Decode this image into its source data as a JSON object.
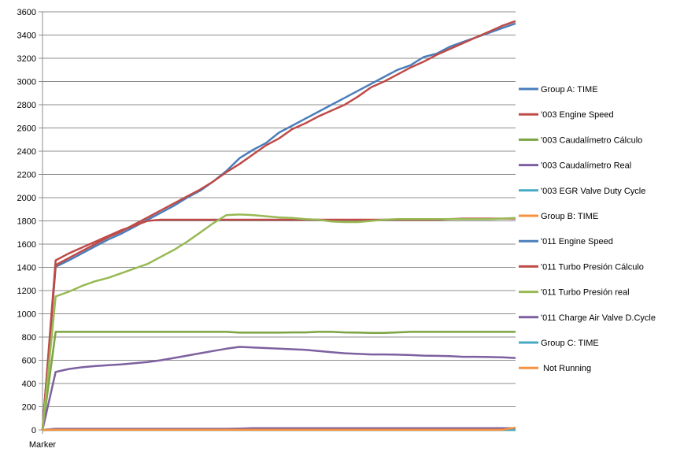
{
  "chart_data": {
    "type": "line",
    "title": "",
    "xlabel": "",
    "ylabel": "",
    "x_tick_labels": [
      "Marker"
    ],
    "ylim": [
      0,
      3600
    ],
    "yticks": [
      0,
      200,
      400,
      600,
      800,
      1000,
      1200,
      1400,
      1600,
      1800,
      2000,
      2200,
      2400,
      2600,
      2800,
      3000,
      3200,
      3400,
      3600
    ],
    "grid": true,
    "legend_position": "right",
    "series": [
      {
        "name": "Group A: TIME",
        "color": "#4a7ebb",
        "values": [
          0,
          1405,
          1460,
          1520,
          1580,
          1640,
          1690,
          1750,
          1810,
          1870,
          1930,
          2000,
          2060,
          2140,
          2230,
          2340,
          2410,
          2470,
          2560,
          2620,
          2680,
          2740,
          2800,
          2860,
          2920,
          2980,
          3040,
          3100,
          3140,
          3210,
          3240,
          3300,
          3340,
          3380,
          3420,
          3460,
          3500
        ]
      },
      {
        "name": "'003 Engine Speed",
        "color": "#be4b48",
        "values": [
          0,
          1420,
          1480,
          1540,
          1600,
          1660,
          1710,
          1770,
          1830,
          1890,
          1950,
          2010,
          2070,
          2140,
          2220,
          2290,
          2370,
          2450,
          2510,
          2590,
          2640,
          2700,
          2750,
          2800,
          2870,
          2950,
          3000,
          3060,
          3120,
          3170,
          3230,
          3280,
          3330,
          3380,
          3430,
          3480,
          3520
        ]
      },
      {
        "name": "'003 Caudalímetro Cálculo",
        "color": "#7ba443",
        "values": [
          0,
          845,
          845,
          845,
          845,
          845,
          845,
          845,
          845,
          845,
          845,
          845,
          845,
          845,
          845,
          838,
          838,
          838,
          838,
          840,
          840,
          845,
          845,
          840,
          838,
          835,
          835,
          840,
          845,
          845,
          845,
          845,
          845,
          845,
          845,
          845,
          845
        ]
      },
      {
        "name": "'003 Caudalímetro Real",
        "color": "#7d60a0",
        "values": [
          0,
          500,
          525,
          540,
          550,
          558,
          565,
          575,
          585,
          600,
          620,
          640,
          660,
          680,
          700,
          715,
          710,
          705,
          700,
          695,
          690,
          680,
          670,
          660,
          655,
          650,
          650,
          648,
          645,
          640,
          638,
          635,
          630,
          630,
          628,
          625,
          620
        ]
      },
      {
        "name": "'003 EGR Valve Duty Cycle",
        "color": "#46aac5",
        "values": [
          0,
          4,
          4,
          4,
          4,
          4,
          4,
          4,
          4,
          4,
          4,
          4,
          4,
          4,
          4,
          4,
          4,
          4,
          4,
          4,
          4,
          4,
          4,
          4,
          4,
          4,
          4,
          4,
          4,
          4,
          4,
          4,
          4,
          4,
          4,
          4,
          4
        ]
      },
      {
        "name": "Group B: TIME",
        "color": "#f69240",
        "values": [
          0,
          0,
          0,
          0,
          0,
          0,
          0,
          0,
          0,
          0,
          0,
          0,
          0,
          0,
          0,
          0,
          0,
          0,
          0,
          0,
          0,
          0,
          0,
          0,
          0,
          0,
          0,
          0,
          0,
          0,
          0,
          0,
          0,
          0,
          0,
          0,
          0
        ]
      },
      {
        "name": "'011 Engine Speed",
        "color": "#4a7ebb",
        "values": [
          0,
          8,
          8,
          8,
          8,
          8,
          8,
          8,
          8,
          8,
          8,
          8,
          8,
          8,
          8,
          8,
          8,
          8,
          8,
          8,
          8,
          8,
          8,
          8,
          8,
          8,
          8,
          8,
          8,
          8,
          8,
          8,
          8,
          8,
          8,
          8,
          8
        ]
      },
      {
        "name": "'011 Turbo Presión Cálculo",
        "color": "#be4b48",
        "values": [
          0,
          1460,
          1520,
          1570,
          1620,
          1670,
          1720,
          1760,
          1800,
          1810,
          1810,
          1810,
          1810,
          1810,
          1810,
          1810,
          1810,
          1810,
          1810,
          1810,
          1810,
          1810,
          1810,
          1810,
          1810,
          1810,
          1810,
          1810,
          1810,
          1810,
          1810,
          1815,
          1820,
          1820,
          1820,
          1820,
          1820
        ]
      },
      {
        "name": "'011 Turbo Presión real",
        "color": "#98b954",
        "values": [
          0,
          1150,
          1190,
          1240,
          1280,
          1310,
          1350,
          1390,
          1430,
          1490,
          1550,
          1620,
          1700,
          1780,
          1850,
          1855,
          1850,
          1840,
          1830,
          1825,
          1815,
          1810,
          1795,
          1790,
          1790,
          1800,
          1810,
          1815,
          1815,
          1815,
          1815,
          1815,
          1815,
          1815,
          1815,
          1820,
          1825
        ]
      },
      {
        "name": "'011 Charge Air Valve D.Cycle",
        "color": "#7d60a0",
        "values": [
          0,
          10,
          10,
          10,
          10,
          10,
          10,
          10,
          10,
          10,
          10,
          10,
          10,
          10,
          10,
          12,
          15,
          15,
          15,
          15,
          15,
          15,
          15,
          15,
          15,
          15,
          15,
          15,
          15,
          15,
          15,
          15,
          15,
          15,
          15,
          15,
          15
        ]
      },
      {
        "name": "Group C: TIME",
        "color": "#46aac5",
        "values": [
          0,
          0,
          0,
          0,
          0,
          0,
          0,
          0,
          0,
          0,
          0,
          0,
          0,
          0,
          0,
          0,
          0,
          0,
          0,
          0,
          0,
          0,
          0,
          0,
          0,
          0,
          0,
          0,
          0,
          0,
          0,
          0,
          0,
          0,
          0,
          0,
          0
        ]
      },
      {
        "name": "Not Running",
        "color": "#f69240",
        "values": [
          0,
          2,
          2,
          2,
          2,
          2,
          2,
          2,
          2,
          2,
          2,
          2,
          2,
          2,
          2,
          2,
          2,
          2,
          2,
          2,
          2,
          2,
          2,
          2,
          2,
          2,
          2,
          2,
          2,
          2,
          2,
          2,
          2,
          2,
          2,
          2,
          20
        ]
      }
    ]
  }
}
